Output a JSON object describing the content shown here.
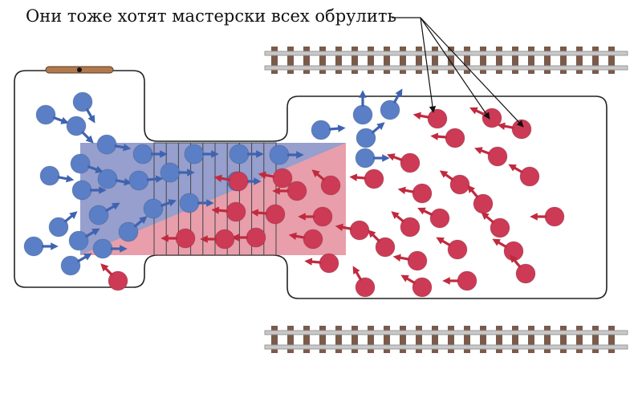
{
  "caption": "Они тоже хотят мастерски всех обрулить",
  "colors": {
    "blue": "#5a7fc6",
    "blue_arrow": "#3f63b0",
    "red": "#cd3a55",
    "red_arrow": "#c02a3e",
    "overlay_blue": "#7f9fd6",
    "overlay_red": "#e07f8f",
    "rail": "#9a9a9a",
    "sleeper": "#7a5a4a",
    "handle": "#b07a4e"
  },
  "icons": {
    "person": "circle-with-arrow",
    "handle": "door-handle",
    "track": "railway-track"
  }
}
